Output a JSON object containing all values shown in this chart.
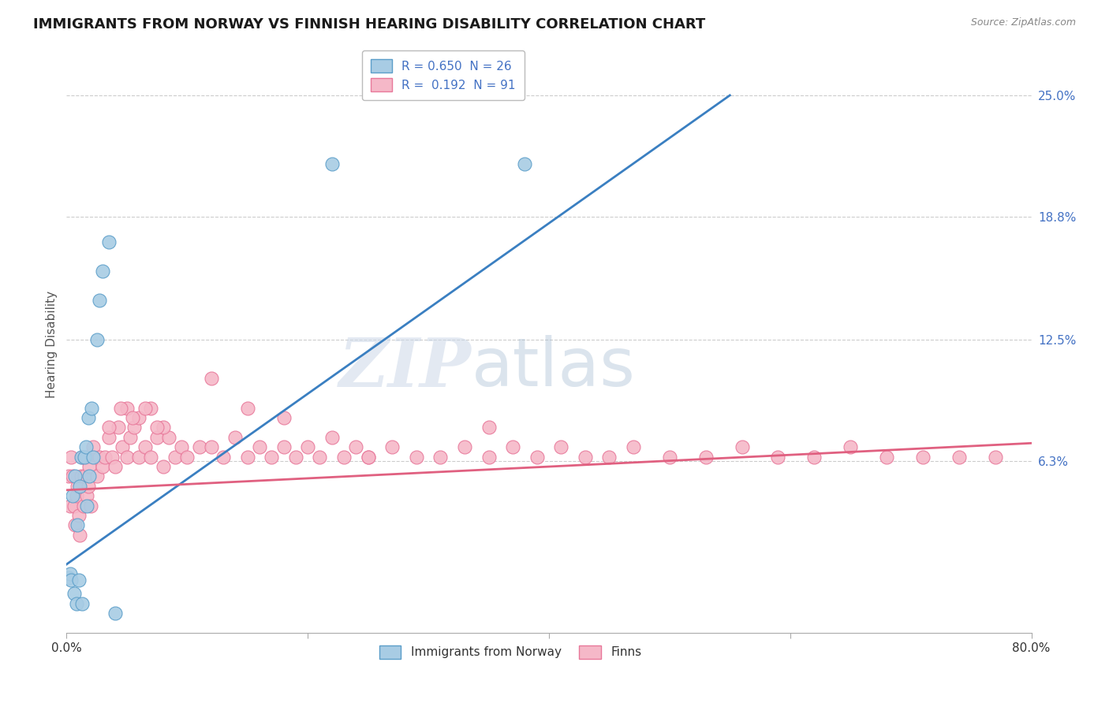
{
  "title": "IMMIGRANTS FROM NORWAY VS FINNISH HEARING DISABILITY CORRELATION CHART",
  "source": "Source: ZipAtlas.com",
  "ylabel": "Hearing Disability",
  "xlim": [
    0.0,
    0.8
  ],
  "ylim": [
    -0.025,
    0.27
  ],
  "norway_color": "#a8cce4",
  "finns_color": "#f5b8c8",
  "norway_edge_color": "#5b9ec9",
  "finns_edge_color": "#e8789a",
  "norway_line_color": "#3a7fc1",
  "finns_line_color": "#e06080",
  "background_color": "#ffffff",
  "grid_color": "#cccccc",
  "legend_r1": "R = 0.650  N = 26",
  "legend_r2": "R =  0.192  N = 91",
  "title_fontsize": 13,
  "axis_label_fontsize": 11,
  "tick_fontsize": 11,
  "right_tick_color": "#4472c4",
  "watermark_zip_color": "#ccd8e8",
  "watermark_atlas_color": "#b0c4d8",
  "norway_scatter_x": [
    0.002,
    0.003,
    0.004,
    0.005,
    0.006,
    0.007,
    0.008,
    0.009,
    0.01,
    0.011,
    0.012,
    0.013,
    0.015,
    0.016,
    0.017,
    0.018,
    0.019,
    0.021,
    0.022,
    0.025,
    0.027,
    0.03,
    0.035,
    0.04,
    0.22,
    0.38
  ],
  "norway_scatter_y": [
    0.003,
    0.005,
    0.002,
    0.045,
    -0.005,
    0.055,
    -0.01,
    0.03,
    0.002,
    0.05,
    0.065,
    -0.01,
    0.065,
    0.07,
    0.04,
    0.085,
    0.055,
    0.09,
    0.065,
    0.125,
    0.145,
    0.16,
    0.175,
    -0.015,
    0.215,
    0.215
  ],
  "finns_scatter_x": [
    0.002,
    0.003,
    0.004,
    0.005,
    0.006,
    0.007,
    0.008,
    0.009,
    0.01,
    0.011,
    0.012,
    0.013,
    0.014,
    0.015,
    0.016,
    0.017,
    0.018,
    0.019,
    0.02,
    0.022,
    0.025,
    0.027,
    0.03,
    0.032,
    0.035,
    0.038,
    0.04,
    0.043,
    0.046,
    0.05,
    0.053,
    0.056,
    0.06,
    0.065,
    0.07,
    0.075,
    0.08,
    0.085,
    0.09,
    0.095,
    0.1,
    0.11,
    0.12,
    0.13,
    0.14,
    0.15,
    0.16,
    0.17,
    0.18,
    0.19,
    0.2,
    0.21,
    0.22,
    0.23,
    0.24,
    0.25,
    0.27,
    0.29,
    0.31,
    0.33,
    0.35,
    0.37,
    0.39,
    0.41,
    0.43,
    0.45,
    0.47,
    0.5,
    0.53,
    0.56,
    0.59,
    0.62,
    0.65,
    0.68,
    0.71,
    0.74,
    0.77,
    0.05,
    0.06,
    0.07,
    0.08,
    0.035,
    0.045,
    0.055,
    0.065,
    0.075,
    0.12,
    0.15,
    0.18,
    0.25,
    0.35
  ],
  "finns_scatter_y": [
    0.055,
    0.04,
    0.065,
    0.055,
    0.04,
    0.03,
    0.045,
    0.05,
    0.035,
    0.025,
    0.055,
    0.065,
    0.04,
    0.055,
    0.065,
    0.045,
    0.05,
    0.06,
    0.04,
    0.07,
    0.055,
    0.065,
    0.06,
    0.065,
    0.075,
    0.065,
    0.06,
    0.08,
    0.07,
    0.065,
    0.075,
    0.08,
    0.065,
    0.07,
    0.065,
    0.075,
    0.06,
    0.075,
    0.065,
    0.07,
    0.065,
    0.07,
    0.07,
    0.065,
    0.075,
    0.065,
    0.07,
    0.065,
    0.07,
    0.065,
    0.07,
    0.065,
    0.075,
    0.065,
    0.07,
    0.065,
    0.07,
    0.065,
    0.065,
    0.07,
    0.065,
    0.07,
    0.065,
    0.07,
    0.065,
    0.065,
    0.07,
    0.065,
    0.065,
    0.07,
    0.065,
    0.065,
    0.07,
    0.065,
    0.065,
    0.065,
    0.065,
    0.09,
    0.085,
    0.09,
    0.08,
    0.08,
    0.09,
    0.085,
    0.09,
    0.08,
    0.105,
    0.09,
    0.085,
    0.065,
    0.08
  ],
  "norway_line_x0": 0.0,
  "norway_line_x1": 0.55,
  "norway_line_y0": 0.01,
  "norway_line_y1": 0.25,
  "finns_line_x0": 0.0,
  "finns_line_x1": 0.8,
  "finns_line_y0": 0.048,
  "finns_line_y1": 0.072
}
